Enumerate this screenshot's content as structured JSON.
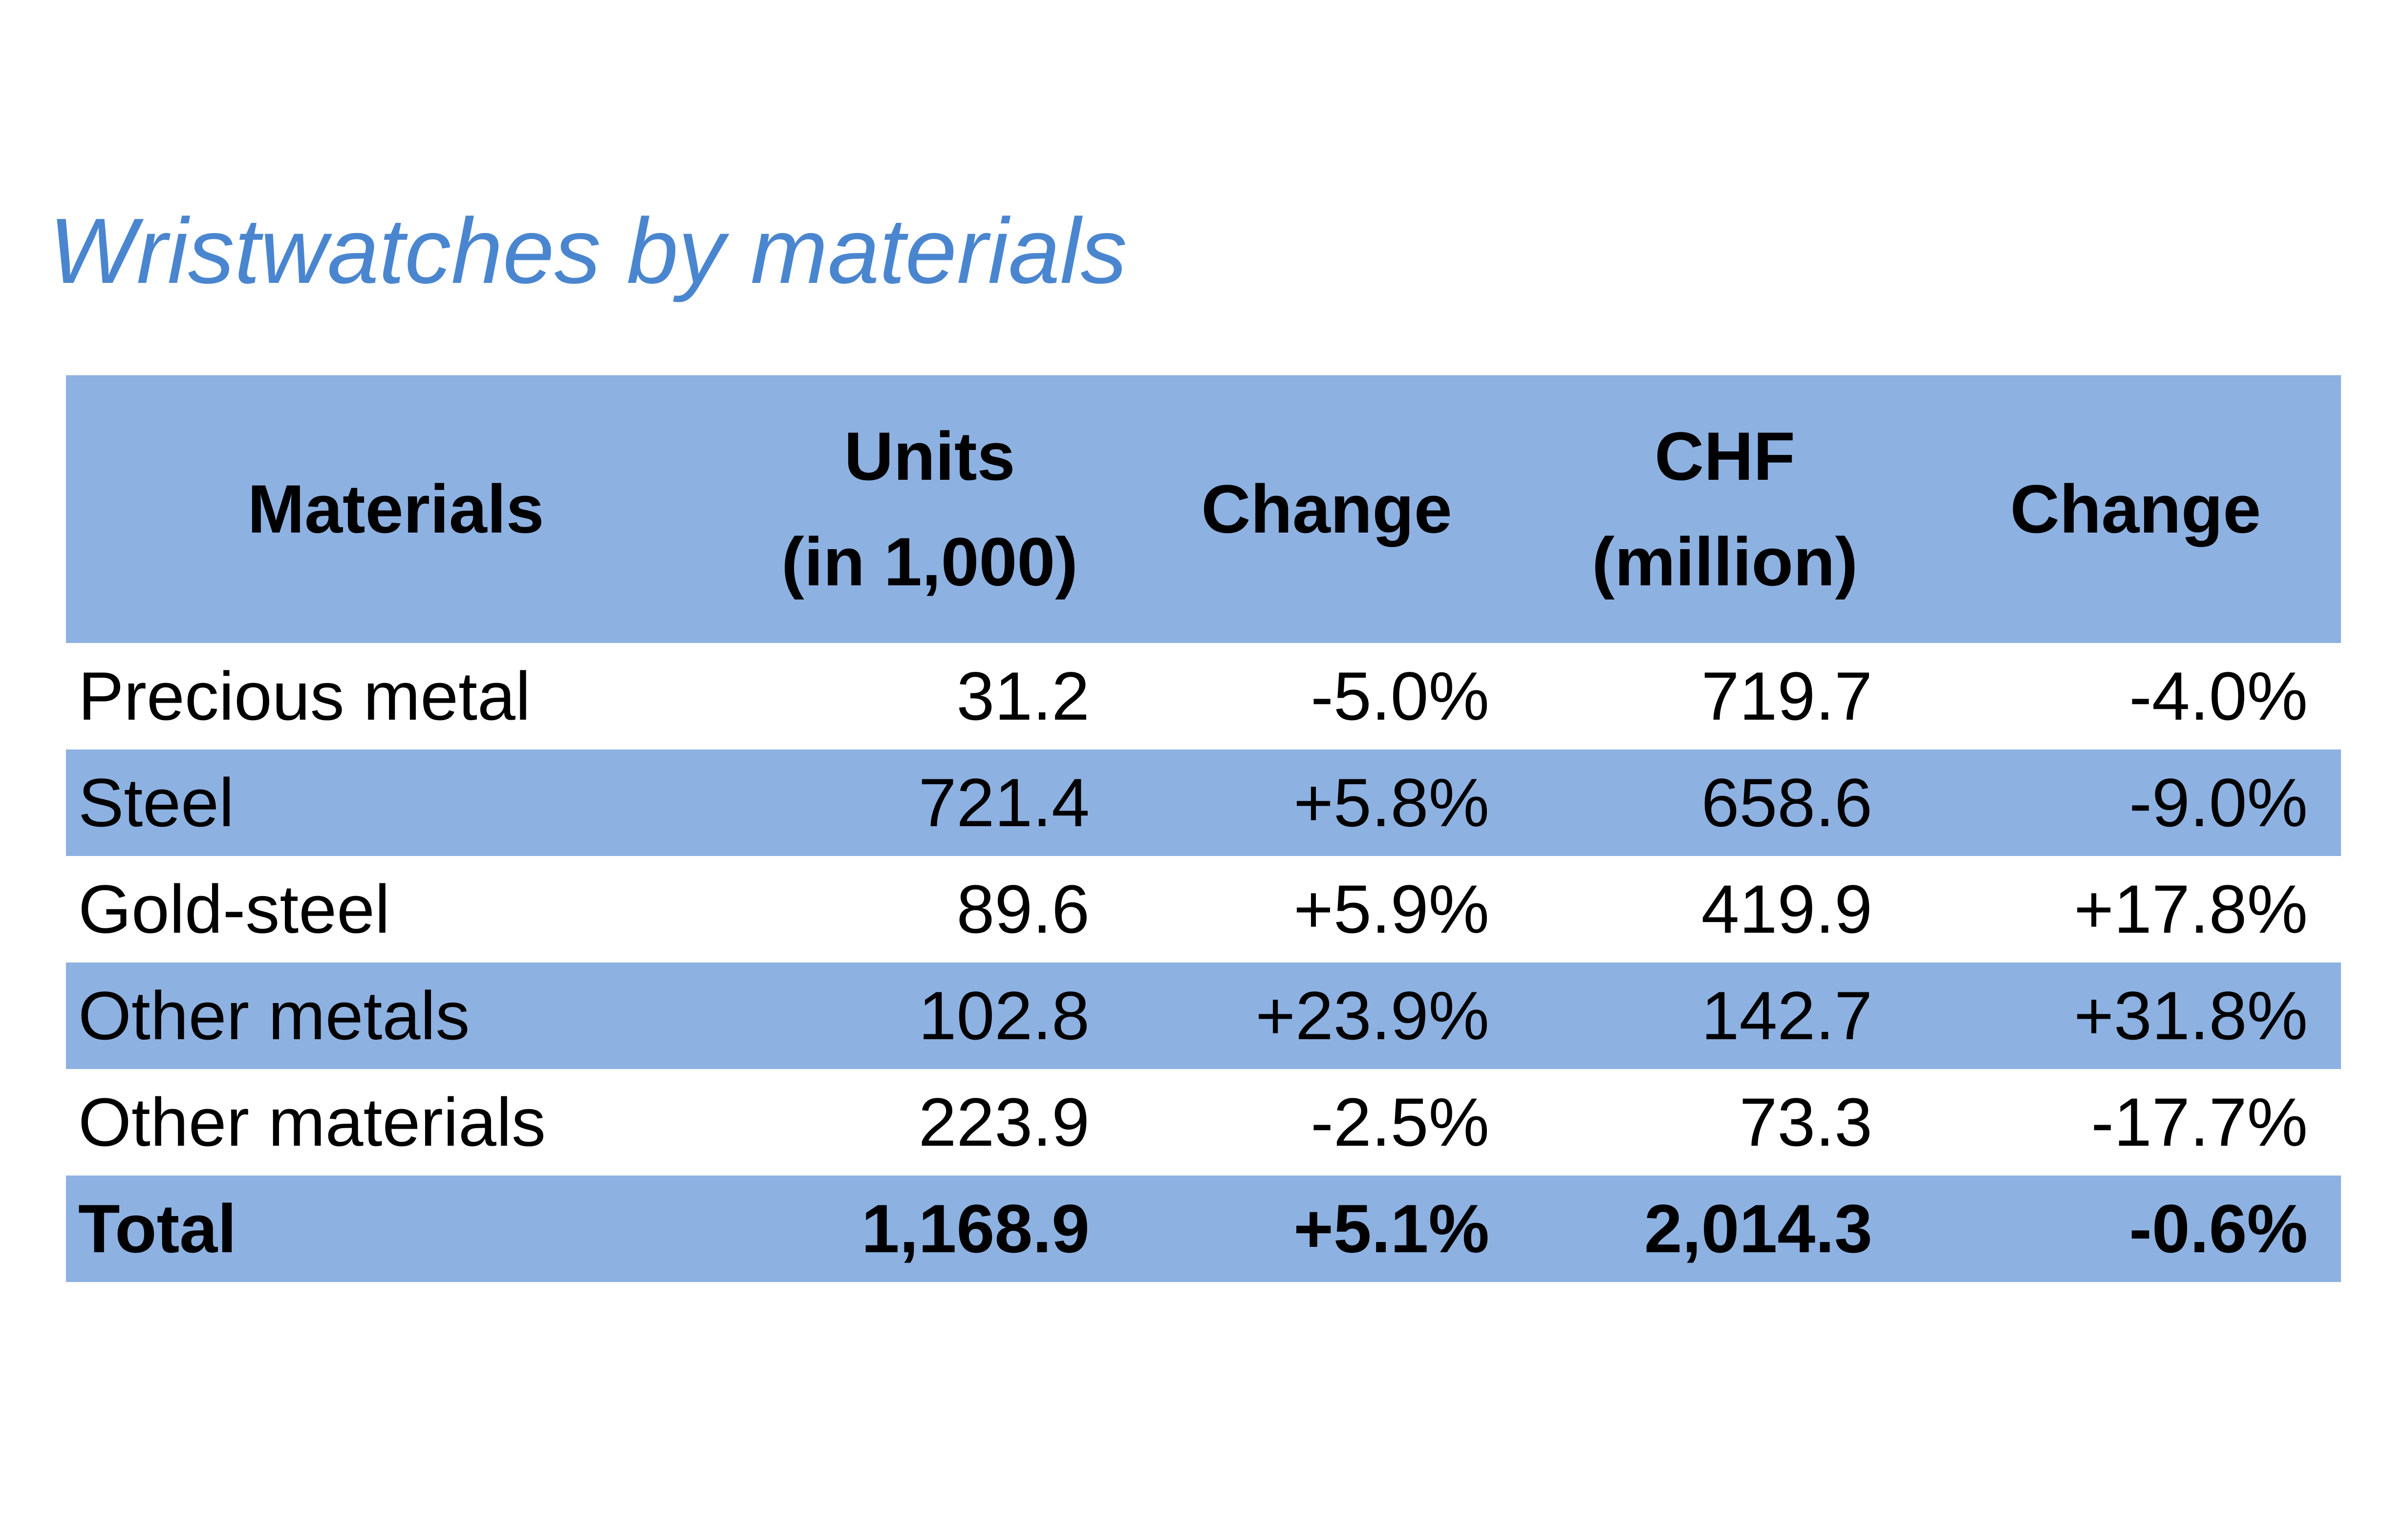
{
  "title": "Wristwatches by materials",
  "colors": {
    "title": "#4a86cf",
    "header_fill": "#8db1e1",
    "stripe_fill": "#8db1e1",
    "plain_fill": "#ffffff",
    "text": "#000000"
  },
  "chart_data": {
    "type": "table",
    "title": "Wristwatches by materials",
    "columns": [
      {
        "lines": [
          "Materials"
        ]
      },
      {
        "lines": [
          "Units",
          "(in 1,000)"
        ]
      },
      {
        "lines": [
          "Change"
        ]
      },
      {
        "lines": [
          "CHF",
          "(million)"
        ]
      },
      {
        "lines": [
          "Change"
        ]
      }
    ],
    "rows": [
      {
        "cells": [
          "Precious metal",
          "31.2",
          "-5.0%",
          "719.7",
          "-4.0%"
        ]
      },
      {
        "cells": [
          "Steel",
          "721.4",
          "+5.8%",
          "658.6",
          "-9.0%"
        ]
      },
      {
        "cells": [
          "Gold-steel",
          "89.6",
          "+5.9%",
          "419.9",
          "+17.8%"
        ]
      },
      {
        "cells": [
          "Other metals",
          "102.8",
          "+23.9%",
          "142.7",
          "+31.8%"
        ]
      },
      {
        "cells": [
          "Other materials",
          "223.9",
          "-2.5%",
          "73.3",
          "-17.7%"
        ]
      },
      {
        "cells": [
          "Total",
          "1,168.9",
          "+5.1%",
          "2,014.3",
          "-0.6%"
        ]
      }
    ]
  }
}
